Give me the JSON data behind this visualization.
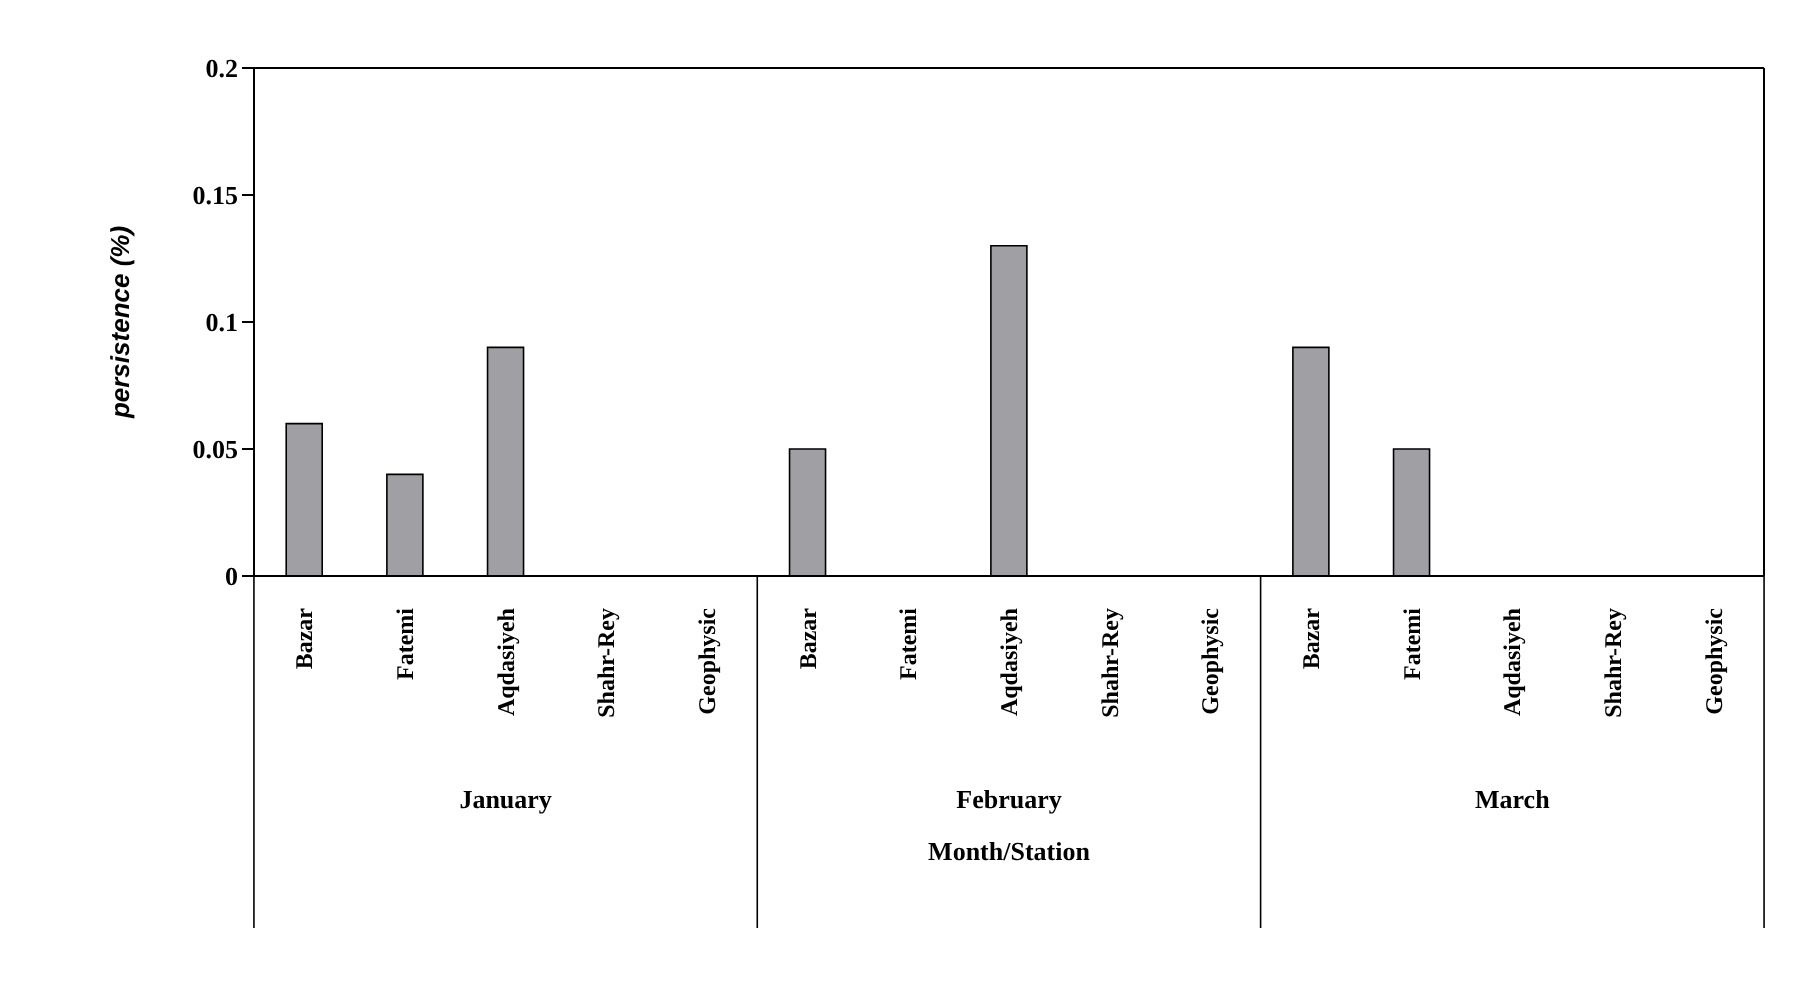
{
  "chart_data": {
    "type": "bar",
    "xlabel": "Month/Station",
    "ylabel": "persistence (%)",
    "categories": [
      "Bazar",
      "Fatemi",
      "Aqdasiyeh",
      "Shahr-Rey",
      "Geophysic",
      "Bazar",
      "Fatemi",
      "Aqdasiyeh",
      "Shahr-Rey",
      "Geophysic",
      "Bazar",
      "Fatemi",
      "Aqdasiyeh",
      "Shahr-Rey",
      "Geophysic"
    ],
    "values": [
      0.06,
      0.04,
      0.09,
      0,
      0,
      0.05,
      0,
      0.13,
      0,
      0,
      0.09,
      0.05,
      0,
      0,
      0
    ],
    "color": "#a0a0a4",
    "ylim": [
      0,
      0.2
    ],
    "yticks": [
      0,
      0.05,
      0.1,
      0.15,
      0.2
    ],
    "annotations": [
      "January",
      "February",
      "March"
    ],
    "grid": false,
    "legend": false
  }
}
